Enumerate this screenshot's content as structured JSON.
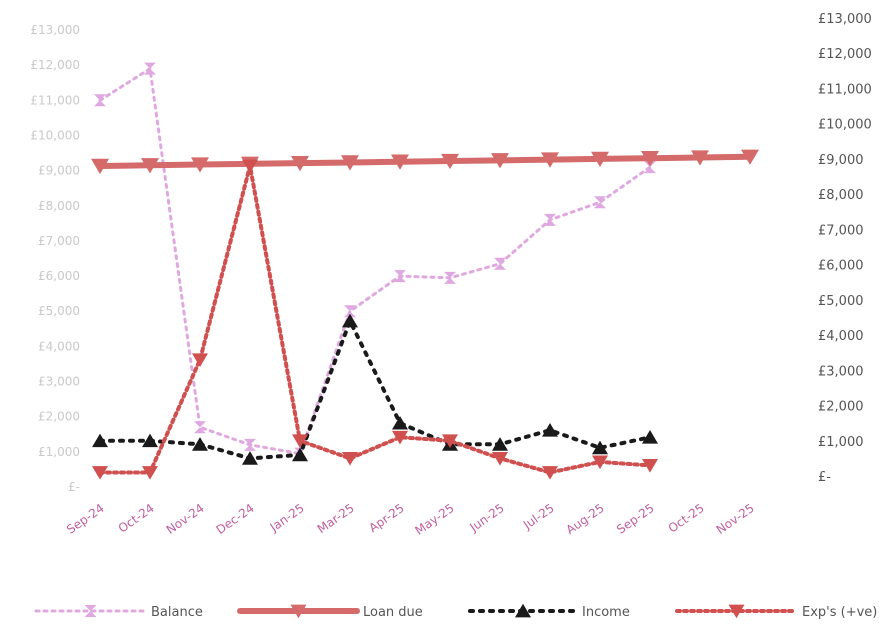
{
  "chart_data": {
    "type": "line",
    "categories": [
      "Sep-24",
      "Oct-24",
      "Nov-24",
      "Dec-24",
      "Jan-25",
      "Mar-25",
      "Apr-25",
      "May-25",
      "Jun-25",
      "Jul-25",
      "Aug-25",
      "Sep-25",
      "Oct-25",
      "Nov-25"
    ],
    "y_left": {
      "ticks": [
        "£-",
        "£1,000",
        "£2,000",
        "£3,000",
        "£4,000",
        "£5,000",
        "£6,000",
        "£7,000",
        "£8,000",
        "£9,000",
        "£10,000",
        "£11,000",
        "£12,000",
        "£13,000"
      ],
      "ylim": [
        0,
        13000
      ]
    },
    "y_right": {
      "ticks": [
        "£-",
        "£1,000",
        "£2,000",
        "£3,000",
        "£4,000",
        "£5,000",
        "£6,000",
        "£7,000",
        "£8,000",
        "£9,000",
        "£10,000",
        "£11,000",
        "£12,000",
        "£13,000"
      ],
      "ylim": [
        0,
        13000
      ]
    },
    "series": [
      {
        "name": "Balance",
        "axis": "left",
        "color": "#e0a8e0",
        "style": "dotted",
        "marker": "hourglass",
        "values": [
          11000,
          11900,
          1700,
          1200,
          950,
          5000,
          6000,
          5950,
          6350,
          7600,
          8100,
          9100,
          null,
          null
        ]
      },
      {
        "name": "Loan due",
        "axis": "right",
        "color": "#d46a6a",
        "style": "solid",
        "marker": "triangle-down",
        "values": [
          8800,
          8820,
          8840,
          8860,
          8880,
          8900,
          8920,
          8940,
          8960,
          8980,
          9000,
          9020,
          9040,
          9060
        ]
      },
      {
        "name": "Income",
        "axis": "right",
        "color": "#1a1a1a",
        "style": "dotted",
        "marker": "triangle-up",
        "values": [
          1000,
          1000,
          900,
          500,
          600,
          4400,
          1500,
          900,
          900,
          1300,
          800,
          1100,
          null,
          null
        ]
      },
      {
        "name": "Exp's (+ve)",
        "axis": "right",
        "color": "#d05050",
        "style": "dotted",
        "marker": "triangle-down",
        "values": [
          100,
          100,
          3300,
          8800,
          1000,
          500,
          1100,
          1000,
          500,
          100,
          400,
          300,
          null,
          null
        ]
      }
    ],
    "grid": false,
    "legend_position": "bottom"
  }
}
